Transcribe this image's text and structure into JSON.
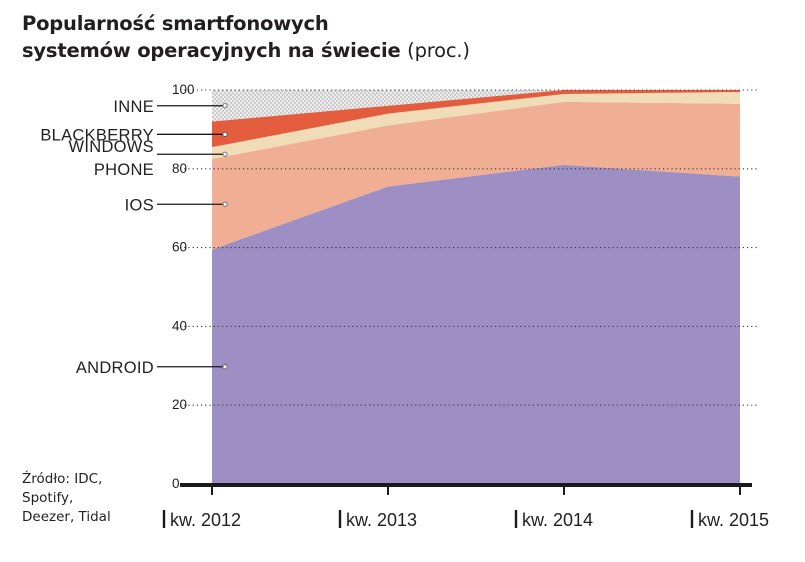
{
  "title": {
    "line1": "Popularność smartfonowych",
    "line2_bold": "systemów operacyjnych na świecie",
    "line2_unit": "(proc.)"
  },
  "source": {
    "line1": "Źródło: IDC,",
    "line2": "Spotify,",
    "line3": "Deezer, Tidal"
  },
  "chart_data": {
    "type": "area",
    "stacked": true,
    "categories": [
      "kw. 2012",
      "kw. 2013",
      "kw. 2014",
      "kw. 2015"
    ],
    "ylim": [
      0,
      100
    ],
    "yticks": [
      0,
      20,
      40,
      60,
      80,
      100
    ],
    "grid": true,
    "series": [
      {
        "name": "ANDROID",
        "values": [
          59.5,
          75.5,
          81.0,
          78.0
        ],
        "color": "#9d8ec3"
      },
      {
        "name": "IOS",
        "values": [
          23.0,
          15.5,
          16.0,
          18.5
        ],
        "color": "#f0ae94"
      },
      {
        "name": "WINDOWS PHONE",
        "values": [
          3.0,
          3.0,
          2.0,
          3.0
        ],
        "color": "#f0dcb6"
      },
      {
        "name": "BLACKBERRY",
        "values": [
          6.5,
          2.0,
          1.0,
          0.5
        ],
        "color": "#e35c3e"
      },
      {
        "name": "INNE",
        "values": [
          8.0,
          4.0,
          0.0,
          0.0
        ],
        "color": "#e2e2e2"
      }
    ],
    "legend_labels": [
      {
        "key": "INNE",
        "lines": [
          "INNE"
        ]
      },
      {
        "key": "BLACKBERRY",
        "lines": [
          "BLACKBERRY"
        ]
      },
      {
        "key": "WINDOWS PHONE",
        "lines": [
          "WINDOWS",
          "PHONE"
        ]
      },
      {
        "key": "IOS",
        "lines": [
          "IOS"
        ]
      },
      {
        "key": "ANDROID",
        "lines": [
          "ANDROID"
        ]
      }
    ]
  }
}
